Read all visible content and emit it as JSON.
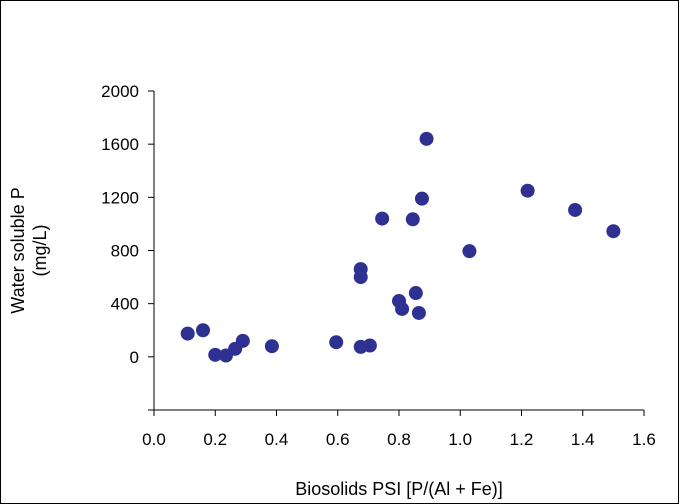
{
  "chart_data": {
    "type": "scatter",
    "title": "",
    "xlabel": "Biosolids PSI [P/(Al + Fe)]",
    "ylabel_lines": [
      "Water soluble P",
      "(mg/L)"
    ],
    "xlim": [
      0.0,
      1.6
    ],
    "ylim": [
      -400,
      2000
    ],
    "x_ticks": [
      "0.0",
      "0.2",
      "0.4",
      "0.6",
      "0.8",
      "1.0",
      "1.2",
      "1.4",
      "1.6"
    ],
    "y_ticks": [
      "0",
      "400",
      "800",
      "1200",
      "1600",
      "2000"
    ],
    "grid": false,
    "legend": "none",
    "marker_color": "#2e3192",
    "points": [
      {
        "x": 0.11,
        "y": 175
      },
      {
        "x": 0.16,
        "y": 200
      },
      {
        "x": 0.2,
        "y": 15
      },
      {
        "x": 0.235,
        "y": 10
      },
      {
        "x": 0.265,
        "y": 60
      },
      {
        "x": 0.29,
        "y": 120
      },
      {
        "x": 0.385,
        "y": 80
      },
      {
        "x": 0.595,
        "y": 110
      },
      {
        "x": 0.675,
        "y": 75
      },
      {
        "x": 0.705,
        "y": 85
      },
      {
        "x": 0.675,
        "y": 660
      },
      {
        "x": 0.675,
        "y": 600
      },
      {
        "x": 0.745,
        "y": 1040
      },
      {
        "x": 0.8,
        "y": 420
      },
      {
        "x": 0.81,
        "y": 360
      },
      {
        "x": 0.845,
        "y": 1035
      },
      {
        "x": 0.855,
        "y": 480
      },
      {
        "x": 0.865,
        "y": 330
      },
      {
        "x": 0.875,
        "y": 1190
      },
      {
        "x": 0.89,
        "y": 1640
      },
      {
        "x": 1.03,
        "y": 795
      },
      {
        "x": 1.22,
        "y": 1250
      },
      {
        "x": 1.375,
        "y": 1105
      },
      {
        "x": 1.5,
        "y": 945
      }
    ]
  }
}
